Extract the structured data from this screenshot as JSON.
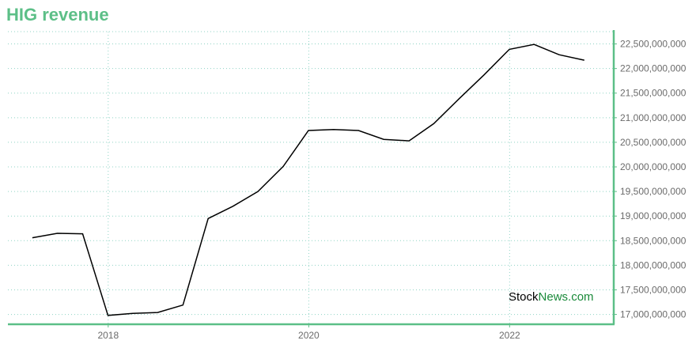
{
  "chart_data": {
    "type": "line",
    "title": "HIG revenue",
    "xlabel": "",
    "ylabel": "",
    "x_ticks": [
      "2018",
      "2020",
      "2022"
    ],
    "y_ticks": [
      "17,000,000,000",
      "17,500,000,000",
      "18,000,000,000",
      "18,500,000,000",
      "19,000,000,000",
      "19,500,000,000",
      "20,000,000,000",
      "20,500,000,000",
      "21,000,000,000",
      "21,500,000,000",
      "22,000,000,000",
      "22,500,000,000"
    ],
    "ylim": [
      16800000000,
      22750000000
    ],
    "xlim": [
      "2017-01-01",
      "2023-01-15"
    ],
    "grid": true,
    "series": [
      {
        "x": [
          "2017-03-31",
          "2017-06-30",
          "2017-09-30",
          "2017-12-31",
          "2018-03-31",
          "2018-06-30",
          "2018-09-30",
          "2018-12-31",
          "2019-03-31",
          "2019-06-30",
          "2019-09-30",
          "2019-12-31",
          "2020-03-31",
          "2020-06-30",
          "2020-09-30",
          "2020-12-31",
          "2021-03-31",
          "2021-06-30",
          "2021-09-30",
          "2021-12-31",
          "2022-03-31",
          "2022-06-30",
          "2022-09-30"
        ],
        "values": [
          18560000000,
          18650000000,
          18640000000,
          16980000000,
          17020000000,
          17040000000,
          17190000000,
          18950000000,
          19200000000,
          19500000000,
          20010000000,
          20740000000,
          20760000000,
          20740000000,
          20560000000,
          20530000000,
          20880000000,
          21380000000,
          21870000000,
          22390000000,
          22490000000,
          22280000000,
          22170000000
        ]
      }
    ],
    "colors": {
      "line": "#000000",
      "axis": "#5cbf87",
      "grid": "#8fd3c4"
    }
  },
  "watermark": {
    "part1": "Stock",
    "part2": "News.com"
  }
}
